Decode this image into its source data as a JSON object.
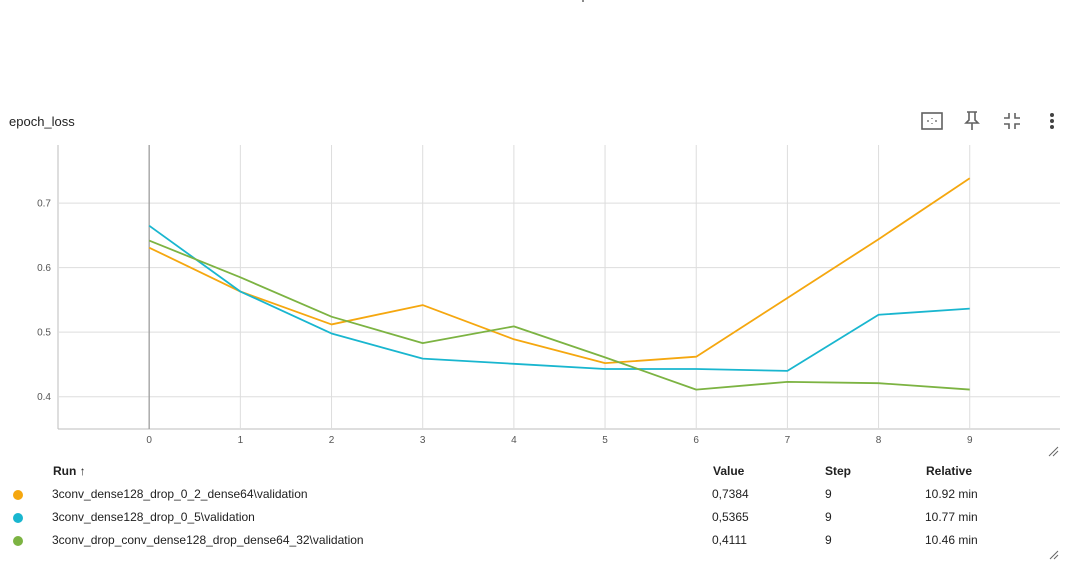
{
  "card": {
    "title": "epoch_loss"
  },
  "toolbar": {
    "icons": [
      "fit-domain-icon",
      "pin-icon",
      "collapse-icon",
      "more-vert-icon"
    ]
  },
  "table": {
    "headers": {
      "run": "Run ↑",
      "value": "Value",
      "step": "Step",
      "relative": "Relative"
    },
    "rows": [
      {
        "run": "3conv_dense128_drop_0_2_dense64\\validation",
        "value": "0,7384",
        "step": "9",
        "relative": "10.92 min",
        "color": "#f5a70f"
      },
      {
        "run": "3conv_dense128_drop_0_5\\validation",
        "value": "0,5365",
        "step": "9",
        "relative": "10.77 min",
        "color": "#19b6cf"
      },
      {
        "run": "3conv_drop_conv_dense128_drop_dense64_32\\validation",
        "value": "0,4111",
        "step": "9",
        "relative": "10.46 min",
        "color": "#7cb342"
      }
    ]
  },
  "chart_data": {
    "type": "line",
    "x": [
      0,
      1,
      2,
      3,
      4,
      5,
      6,
      7,
      8,
      9
    ],
    "xticks": [
      "0",
      "1",
      "2",
      "3",
      "4",
      "5",
      "6",
      "7",
      "8",
      "9"
    ],
    "yticks": [
      "0.4",
      "0.5",
      "0.6",
      "0.7"
    ],
    "xlim": [
      -1,
      9.99
    ],
    "ylim": [
      0.35,
      0.79
    ],
    "grid": true,
    "series": [
      {
        "name": "3conv_dense128_drop_0_2_dense64\\validation",
        "color": "#f5a70f",
        "values": [
          0.631,
          0.563,
          0.512,
          0.542,
          0.489,
          0.452,
          0.462,
          0.553,
          0.644,
          0.7384
        ]
      },
      {
        "name": "3conv_dense128_drop_0_5\\validation",
        "color": "#19b6cf",
        "values": [
          0.665,
          0.563,
          0.498,
          0.459,
          0.451,
          0.443,
          0.443,
          0.44,
          0.527,
          0.5365
        ]
      },
      {
        "name": "3conv_drop_conv_dense128_drop_dense64_32\\validation",
        "color": "#7cb342",
        "values": [
          0.642,
          0.585,
          0.524,
          0.483,
          0.509,
          0.461,
          0.411,
          0.423,
          0.421,
          0.4111
        ]
      }
    ]
  }
}
